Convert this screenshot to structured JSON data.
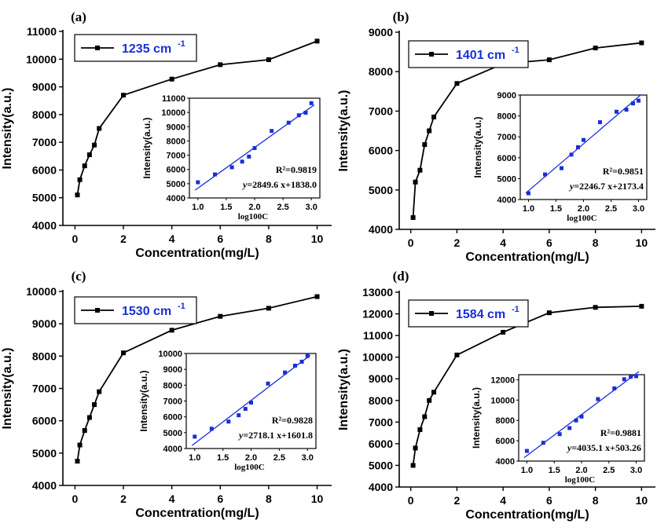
{
  "colors": {
    "main_line": "#000000",
    "legend_text": "#1a2fd6",
    "inset_points": "#1a2fd6",
    "fit_line": "#1a2fd6"
  },
  "chart_data": [
    {
      "panel": "(a)",
      "type": "line",
      "legend": "1235 cm",
      "legend_sup": "-1",
      "xlabel": "Concentration(mg/L)",
      "ylabel": "Intensity(a.u.)",
      "xlim": [
        -0.5,
        10.6
      ],
      "ylim": [
        4000,
        11000
      ],
      "xticks": [
        0,
        2,
        4,
        6,
        8,
        10
      ],
      "yticks": [
        4000,
        5000,
        6000,
        7000,
        8000,
        9000,
        10000,
        11000
      ],
      "x": [
        0.1,
        0.2,
        0.4,
        0.6,
        0.8,
        1,
        2,
        4,
        6,
        8,
        10
      ],
      "y": [
        5100,
        5650,
        6150,
        6550,
        6900,
        7500,
        8700,
        9280,
        9800,
        9980,
        10650
      ],
      "inset": {
        "type": "scatter",
        "xlabel": "log100C",
        "ylabel": "Intensity(a.u.)",
        "xlim": [
          0.85,
          3.15
        ],
        "ylim": [
          4000,
          11000
        ],
        "xticks": [
          1.0,
          1.5,
          2.0,
          2.5,
          3.0
        ],
        "yticks": [
          4000,
          5000,
          6000,
          7000,
          8000,
          9000,
          10000,
          11000
        ],
        "x": [
          1.0,
          1.3,
          1.6,
          1.78,
          1.9,
          2.0,
          2.3,
          2.6,
          2.78,
          2.9,
          3.0
        ],
        "y": [
          5100,
          5650,
          6150,
          6550,
          6900,
          7500,
          8700,
          9280,
          9800,
          9980,
          10650
        ],
        "fit": {
          "slope": 2849.6,
          "intercept": 1838.0
        },
        "r2_text": "R²=0.9819",
        "eq_prefix": "y",
        "eq_text": "=2849.6 x+1838.0"
      }
    },
    {
      "panel": "(b)",
      "type": "line",
      "legend": "1401 cm",
      "legend_sup": "-1",
      "xlabel": "Concentration(mg/L)",
      "ylabel": "Intensity(a.u.)",
      "xlim": [
        -0.5,
        10.6
      ],
      "ylim": [
        4000,
        9000
      ],
      "xticks": [
        0,
        2,
        4,
        6,
        8,
        10
      ],
      "yticks": [
        4000,
        5000,
        6000,
        7000,
        8000,
        9000
      ],
      "x": [
        0.1,
        0.2,
        0.4,
        0.6,
        0.8,
        1,
        2,
        4,
        6,
        8,
        10
      ],
      "y": [
        4300,
        5200,
        5500,
        6150,
        6500,
        6850,
        7700,
        8200,
        8300,
        8600,
        8730
      ],
      "inset": {
        "type": "scatter",
        "xlabel": "log100C",
        "ylabel": "Intensity(a.u.)",
        "xlim": [
          0.85,
          3.15
        ],
        "ylim": [
          4000,
          9000
        ],
        "xticks": [
          1.0,
          1.5,
          2.0,
          2.5,
          3.0
        ],
        "yticks": [
          4000,
          5000,
          6000,
          7000,
          8000,
          9000
        ],
        "x": [
          1.0,
          1.3,
          1.6,
          1.78,
          1.9,
          2.0,
          2.3,
          2.6,
          2.78,
          2.9,
          3.0
        ],
        "y": [
          4300,
          5200,
          5500,
          6150,
          6500,
          6850,
          7700,
          8200,
          8300,
          8600,
          8730
        ],
        "fit": {
          "slope": 2246.7,
          "intercept": 2173.4
        },
        "r2_text": "R²=0.9851",
        "eq_prefix": "y",
        "eq_text": "=2246.7 x+2173.4"
      }
    },
    {
      "panel": "(c)",
      "type": "line",
      "legend": "1530 cm",
      "legend_sup": "-1",
      "xlabel": "Concentration(mg/L)",
      "ylabel": "Intensity(a.u.)",
      "xlim": [
        -0.5,
        10.6
      ],
      "ylim": [
        4000,
        10000
      ],
      "xticks": [
        0,
        2,
        4,
        6,
        8,
        10
      ],
      "yticks": [
        4000,
        5000,
        6000,
        7000,
        8000,
        9000,
        10000
      ],
      "x": [
        0.1,
        0.2,
        0.4,
        0.6,
        0.8,
        1,
        2,
        4,
        6,
        8,
        10
      ],
      "y": [
        4750,
        5250,
        5700,
        6100,
        6500,
        6900,
        8100,
        8800,
        9230,
        9480,
        9840
      ],
      "inset": {
        "type": "scatter",
        "xlabel": "log100C",
        "ylabel": "Intensity(a.u.)",
        "xlim": [
          0.85,
          3.15
        ],
        "ylim": [
          4000,
          10000
        ],
        "xticks": [
          1.0,
          1.5,
          2.0,
          2.5,
          3.0
        ],
        "yticks": [
          4000,
          5000,
          6000,
          7000,
          8000,
          9000,
          10000
        ],
        "x": [
          1.0,
          1.3,
          1.6,
          1.78,
          1.9,
          2.0,
          2.3,
          2.6,
          2.78,
          2.9,
          3.0
        ],
        "y": [
          4750,
          5250,
          5700,
          6100,
          6500,
          6900,
          8100,
          8800,
          9230,
          9480,
          9840
        ],
        "fit": {
          "slope": 2718.1,
          "intercept": 1601.8
        },
        "r2_text": "R²=0.9828",
        "eq_prefix": "y",
        "eq_text": "=2718.1 x+1601.8"
      }
    },
    {
      "panel": "(d)",
      "type": "line",
      "legend": "1584 cm",
      "legend_sup": "-1",
      "xlabel": "Concentration(mg/L)",
      "ylabel": "Intensity(a.u.)",
      "xlim": [
        -0.5,
        10.6
      ],
      "ylim": [
        4000,
        13000
      ],
      "xticks": [
        0,
        2,
        4,
        6,
        8,
        10
      ],
      "yticks": [
        4000,
        5000,
        6000,
        7000,
        8000,
        9000,
        10000,
        11000,
        12000,
        13000
      ],
      "x": [
        0.1,
        0.2,
        0.4,
        0.6,
        0.8,
        1,
        2,
        4,
        6,
        8,
        10
      ],
      "y": [
        5000,
        5800,
        6650,
        7250,
        8000,
        8380,
        10100,
        11150,
        12050,
        12300,
        12350
      ],
      "inset": {
        "type": "scatter",
        "xlabel": "log100C",
        "ylabel": "Intensity(a.u.)",
        "xlim": [
          0.85,
          3.15
        ],
        "ylim": [
          4000,
          12500
        ],
        "xticks": [
          1.0,
          1.5,
          2.0,
          2.5,
          3.0
        ],
        "yticks": [
          4000,
          6000,
          8000,
          10000,
          12000
        ],
        "x": [
          1.0,
          1.3,
          1.6,
          1.78,
          1.9,
          2.0,
          2.3,
          2.6,
          2.78,
          2.9,
          3.0
        ],
        "y": [
          5000,
          5800,
          6650,
          7250,
          8000,
          8380,
          10100,
          11150,
          12050,
          12300,
          12350
        ],
        "fit": {
          "slope": 4035.1,
          "intercept": 503.26
        },
        "r2_text": "R²=0.9881",
        "eq_prefix": "y",
        "eq_text": "=4035.1 x+503.26"
      }
    }
  ]
}
